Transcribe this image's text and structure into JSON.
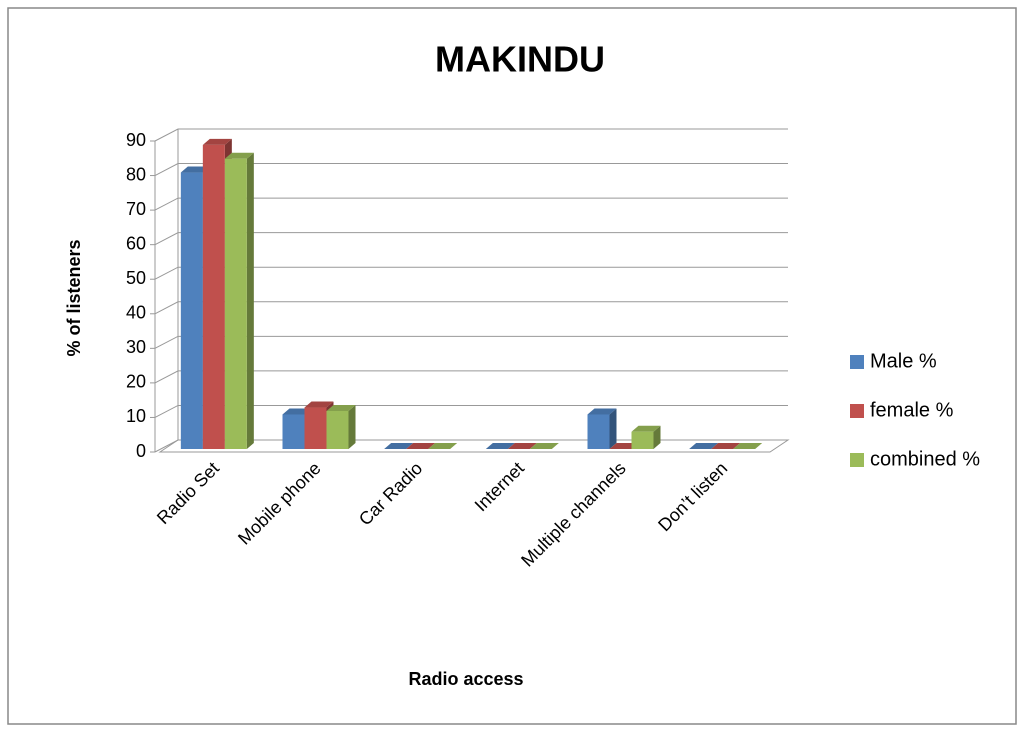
{
  "chart_data": {
    "type": "bar3d",
    "title": "MAKINDU",
    "x_label": "Radio access",
    "y_label": "% of listeners",
    "categories": [
      "Radio Set",
      "Mobile phone",
      "Car Radio",
      "Internet",
      "Multiple channels",
      "Don’t listen"
    ],
    "series": [
      {
        "name": "Male %",
        "color": "#4f81bd",
        "values": [
          80,
          10,
          0,
          0,
          10,
          0
        ]
      },
      {
        "name": "female %",
        "color": "#c0504d",
        "values": [
          88,
          12,
          0,
          0,
          0,
          0
        ]
      },
      {
        "name": "combined %",
        "color": "#9bbb59",
        "values": [
          84,
          11,
          0,
          0,
          5,
          0
        ]
      }
    ],
    "ylim": [
      0,
      90
    ],
    "yticks": [
      0,
      10,
      20,
      30,
      40,
      50,
      60,
      70,
      80,
      90
    ],
    "grid": true,
    "legend": "right"
  }
}
